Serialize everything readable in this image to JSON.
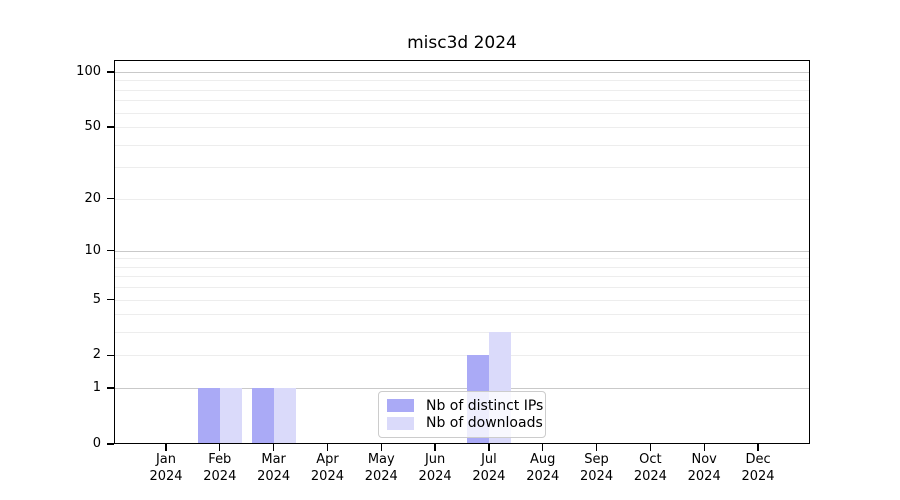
{
  "chart_data": {
    "type": "bar",
    "title": "misc3d 2024",
    "categories": [
      "Jan",
      "Feb",
      "Mar",
      "Apr",
      "May",
      "Jun",
      "Jul",
      "Aug",
      "Sep",
      "Oct",
      "Nov",
      "Dec"
    ],
    "year": "2024",
    "series": [
      {
        "name": "Nb of distinct IPs",
        "key": "ips",
        "values": [
          0,
          1,
          1,
          0,
          0,
          0,
          2,
          0,
          0,
          0,
          0,
          0
        ]
      },
      {
        "name": "Nb of downloads",
        "key": "downloads",
        "values": [
          0,
          1,
          1,
          0,
          0,
          0,
          3,
          0,
          0,
          0,
          0,
          0
        ]
      }
    ],
    "yscale": "log1p",
    "ylim": [
      0,
      116
    ],
    "yticks": [
      0,
      1,
      2,
      5,
      10,
      20,
      50,
      100
    ],
    "major_gridlines": [
      1,
      10,
      100
    ],
    "minor_gridlines": [
      2,
      3,
      4,
      5,
      6,
      7,
      8,
      9,
      20,
      30,
      40,
      50,
      60,
      70,
      80,
      90
    ],
    "grid": true,
    "legend_position": "lower center",
    "xlabel": "",
    "ylabel": ""
  },
  "colors": {
    "bar_ips": "#aaaaf6",
    "bar_downloads": "#dadafa",
    "grid_major": "#c9c9c9",
    "grid_minor": "#ededed",
    "axis": "#000000",
    "background": "#ffffff"
  }
}
